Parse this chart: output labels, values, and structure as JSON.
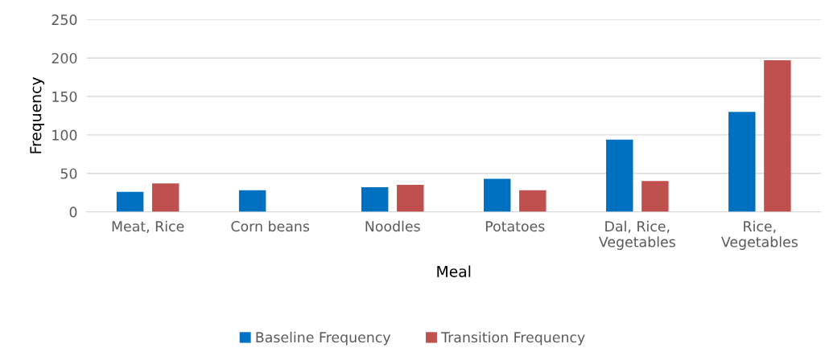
{
  "chart_data": {
    "type": "bar",
    "xlabel": "Meal",
    "ylabel": "Frequency",
    "categories": [
      "Meat, Rice",
      "Corn beans",
      "Noodles",
      "Potatoes",
      "Dal, Rice,\nVegetables",
      "Rice,\nVegetables"
    ],
    "series": [
      {
        "name": "Baseline Frequency",
        "color": "#0070c0",
        "values": [
          26,
          28,
          32,
          43,
          94,
          130
        ]
      },
      {
        "name": "Transition Frequency",
        "color": "#c0504d",
        "values": [
          37,
          null,
          35,
          28,
          40,
          197
        ]
      }
    ],
    "ylim": [
      0,
      250
    ],
    "yticks": [
      0,
      50,
      100,
      150,
      200,
      250
    ],
    "grid": "y",
    "legend": "bottom"
  }
}
